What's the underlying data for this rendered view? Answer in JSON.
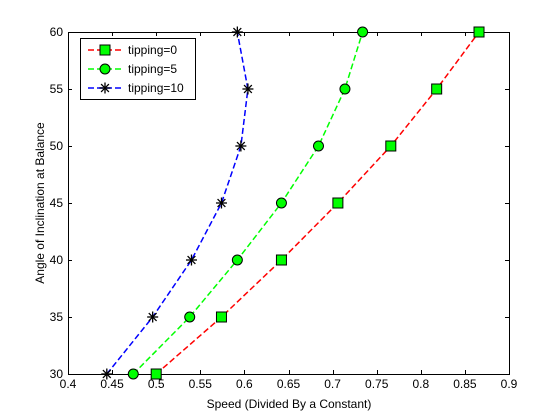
{
  "chart_data": {
    "type": "line",
    "title": "",
    "xlabel": "Speed (Divided By a Constant)",
    "ylabel": "Angle of Inclination at Balance",
    "xlim": [
      0.4,
      0.9
    ],
    "ylim": [
      30,
      60
    ],
    "xticks": [
      0.4,
      0.45,
      0.5,
      0.55,
      0.6,
      0.65,
      0.7,
      0.75,
      0.8,
      0.85,
      0.9
    ],
    "xtick_labels": [
      "0.4",
      "0.45",
      "0.5",
      "0.55",
      "0.6",
      "0.65",
      "0.7",
      "0.75",
      "0.8",
      "0.85",
      "0.9"
    ],
    "yticks": [
      30,
      35,
      40,
      45,
      50,
      55,
      60
    ],
    "ytick_labels": [
      "30",
      "35",
      "40",
      "45",
      "50",
      "55",
      "60"
    ],
    "grid": false,
    "legend_position": "top-left",
    "series": [
      {
        "name": "tipping=0",
        "color": "#ff0000",
        "marker": "square",
        "marker_fill": "#00ff00",
        "x": [
          0.5,
          0.574,
          0.642,
          0.706,
          0.766,
          0.818,
          0.866
        ],
        "y": [
          30,
          35,
          40,
          45,
          50,
          55,
          60
        ]
      },
      {
        "name": "tipping=5",
        "color": "#00ff00",
        "marker": "circle",
        "marker_fill": "#00ff00",
        "x": [
          0.474,
          0.538,
          0.592,
          0.642,
          0.684,
          0.714,
          0.734
        ],
        "y": [
          30,
          35,
          40,
          45,
          50,
          55,
          60
        ]
      },
      {
        "name": "tipping=10",
        "color": "#0000ff",
        "marker": "asterisk",
        "marker_fill": "none",
        "x": [
          0.444,
          0.496,
          0.54,
          0.574,
          0.596,
          0.604,
          0.592
        ],
        "y": [
          30,
          35,
          40,
          45,
          50,
          55,
          60
        ]
      }
    ]
  }
}
